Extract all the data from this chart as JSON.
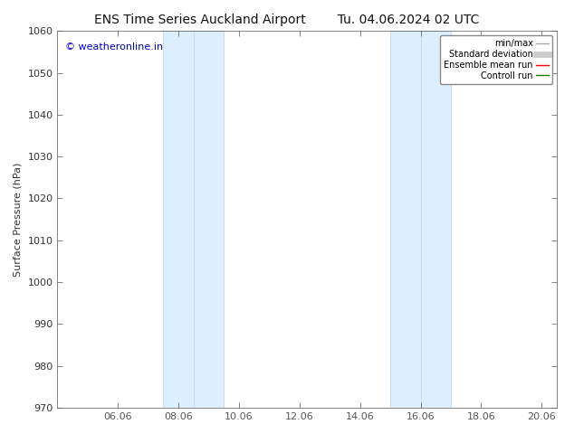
{
  "title_left": "ENS Time Series Auckland Airport",
  "title_right": "Tu. 04.06.2024 02 UTC",
  "ylabel": "Surface Pressure (hPa)",
  "ylim": [
    970,
    1060
  ],
  "yticks": [
    970,
    980,
    990,
    1000,
    1010,
    1020,
    1030,
    1040,
    1050,
    1060
  ],
  "xlim": [
    0,
    16.5
  ],
  "xtick_labels": [
    "06.06",
    "08.06",
    "10.06",
    "12.06",
    "14.06",
    "16.06",
    "18.06",
    "20.06"
  ],
  "xtick_positions": [
    2,
    4,
    6,
    8,
    10,
    12,
    14,
    16
  ],
  "shaded_bands": [
    {
      "x_start": 3.5,
      "x_end": 5.5,
      "divider": 4.5
    },
    {
      "x_start": 11.0,
      "x_end": 13.0,
      "divider": 12.0
    }
  ],
  "shaded_color": "#ddeeff",
  "shaded_edge_color": "#b8d4e8",
  "shaded_divider_color": "#b8d4e8",
  "watermark_text": "© weatheronline.in",
  "watermark_color": "#0000cc",
  "legend_items": [
    {
      "label": "min/max",
      "color": "#aaaaaa",
      "lw": 1.0,
      "linestyle": "-"
    },
    {
      "label": "Standard deviation",
      "color": "#cccccc",
      "lw": 5,
      "linestyle": "-"
    },
    {
      "label": "Ensemble mean run",
      "color": "#ff0000",
      "lw": 1.0,
      "linestyle": "-"
    },
    {
      "label": "Controll run",
      "color": "#008000",
      "lw": 1.0,
      "linestyle": "-"
    }
  ],
  "background_color": "#ffffff",
  "spine_color": "#555555",
  "tick_color": "#333333",
  "title_fontsize": 10,
  "label_fontsize": 8,
  "tick_fontsize": 8,
  "legend_fontsize": 7,
  "watermark_fontsize": 8
}
